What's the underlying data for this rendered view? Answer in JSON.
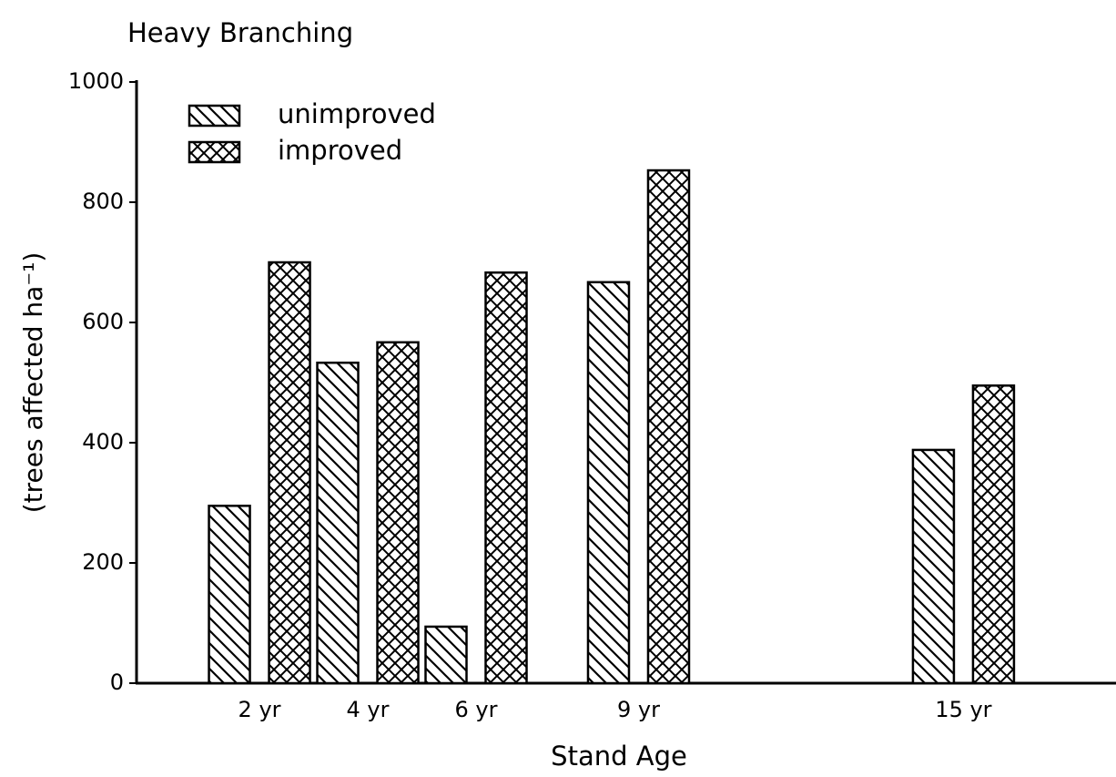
{
  "chart_data": {
    "type": "bar",
    "title": "Heavy Branching",
    "xlabel": "Stand Age",
    "ylabel": "(trees affected ha⁻¹)",
    "x": [
      2,
      4,
      6,
      9,
      15
    ],
    "xticks": [
      {
        "value": 2,
        "label": "2 yr"
      },
      {
        "value": 4,
        "label": "4 yr"
      },
      {
        "value": 6,
        "label": "6 yr"
      },
      {
        "value": 9,
        "label": "9 yr"
      },
      {
        "value": 15,
        "label": "15 yr"
      }
    ],
    "xlim": [
      -0.27,
      17.8
    ],
    "ylim": [
      0,
      1000
    ],
    "yticks": [
      0,
      200,
      400,
      600,
      800,
      1000
    ],
    "grid": false,
    "legend": "upper left",
    "series": [
      {
        "name": "unimproved",
        "color": "#000",
        "hatch": "diagonal",
        "values": [
          295,
          533,
          94,
          667,
          388
        ]
      },
      {
        "name": "improved",
        "color": "#000",
        "hatch": "cross",
        "values": [
          700,
          567,
          683,
          853,
          495
        ]
      }
    ]
  }
}
